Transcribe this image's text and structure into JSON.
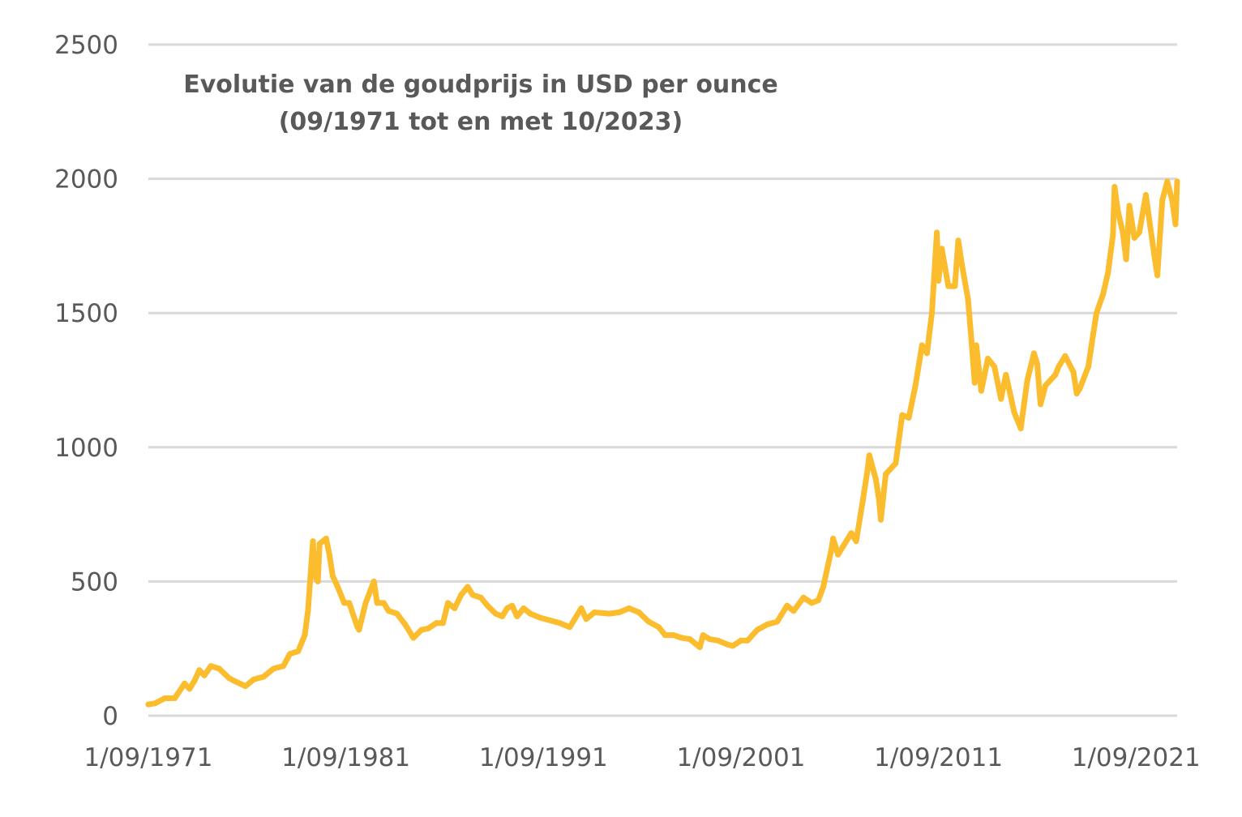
{
  "chart_data": {
    "type": "line",
    "title": "Evolutie van de goudprijs in USD per ounce",
    "subtitle": "(09/1971 tot en met 10/2023)",
    "xlabel": "",
    "ylabel": "",
    "ylim": [
      0,
      2500
    ],
    "xlim": [
      "1971-09",
      "2023-10"
    ],
    "y_ticks": [
      "0",
      "500",
      "1000",
      "1500",
      "2000",
      "2500"
    ],
    "x_ticks": [
      "1/09/1971",
      "1/09/1981",
      "1/09/1991",
      "1/09/2001",
      "1/09/2011",
      "1/09/2021"
    ],
    "grid": true,
    "legend": "none",
    "line_color": "#FBBC2E",
    "grid_color": "#D9D9D9",
    "series": [
      {
        "x": [
          "1971-09",
          "1972-01",
          "1972-07",
          "1973-01",
          "1973-07",
          "1973-10",
          "1974-01",
          "1974-04",
          "1974-07",
          "1974-11",
          "1975-04",
          "1975-10",
          "1976-01",
          "1976-08",
          "1977-01",
          "1977-07",
          "1978-01",
          "1978-07",
          "1978-11",
          "1979-04",
          "1979-08",
          "1979-10",
          "1980-01",
          "1980-02",
          "1980-04",
          "1980-05",
          "1980-09",
          "1980-11",
          "1981-01",
          "1981-04",
          "1981-08",
          "1981-11",
          "1982-04",
          "1982-05",
          "1982-09",
          "1983-02",
          "1983-04",
          "1983-08",
          "1983-11",
          "1984-04",
          "1984-09",
          "1985-02",
          "1985-07",
          "1985-11",
          "1986-04",
          "1986-08",
          "1986-11",
          "1987-03",
          "1987-07",
          "1987-11",
          "1988-02",
          "1988-07",
          "1988-11",
          "1989-04",
          "1989-08",
          "1989-11",
          "1990-02",
          "1990-05",
          "1990-09",
          "1991-01",
          "1991-07",
          "1992-01",
          "1992-07",
          "1993-01",
          "1993-04",
          "1993-08",
          "1993-11",
          "1994-04",
          "1995-01",
          "1995-07",
          "1996-01",
          "1996-07",
          "1997-01",
          "1997-07",
          "1997-11",
          "1998-04",
          "1998-09",
          "1999-02",
          "1999-08",
          "1999-10",
          "2000-02",
          "2000-07",
          "2001-01",
          "2001-04",
          "2001-09",
          "2002-01",
          "2002-07",
          "2003-01",
          "2003-07",
          "2004-01",
          "2004-05",
          "2004-11",
          "2005-04",
          "2005-08",
          "2005-11",
          "2006-04",
          "2006-05",
          "2006-08",
          "2006-11",
          "2007-04",
          "2007-07",
          "2007-11",
          "2008-02",
          "2008-03",
          "2008-07",
          "2008-09",
          "2008-10",
          "2009-01",
          "2009-07",
          "2009-11",
          "2010-03",
          "2010-07",
          "2010-11",
          "2011-02",
          "2011-05",
          "2011-08",
          "2011-09",
          "2011-11",
          "2012-03",
          "2012-07",
          "2012-09",
          "2012-11",
          "2013-03",
          "2013-05",
          "2013-07",
          "2013-08",
          "2013-11",
          "2014-03",
          "2014-07",
          "2014-11",
          "2015-02",
          "2015-07",
          "2015-11",
          "2016-03",
          "2016-07",
          "2016-09",
          "2016-11",
          "2017-02",
          "2017-08",
          "2017-10",
          "2018-02",
          "2018-07",
          "2018-09",
          "2018-11",
          "2019-04",
          "2019-07",
          "2019-09",
          "2020-01",
          "2020-04",
          "2020-07",
          "2020-08",
          "2020-10",
          "2021-01",
          "2021-03",
          "2021-05",
          "2021-08",
          "2021-11",
          "2022-03",
          "2022-05",
          "2022-08",
          "2022-10",
          "2023-01",
          "2023-04",
          "2023-07",
          "2023-09",
          "2023-10"
        ],
        "values": [
          42,
          46,
          65,
          65,
          120,
          100,
          130,
          170,
          150,
          185,
          175,
          140,
          130,
          110,
          135,
          145,
          175,
          185,
          230,
          240,
          300,
          390,
          650,
          520,
          500,
          640,
          660,
          600,
          520,
          480,
          420,
          420,
          330,
          320,
          420,
          500,
          420,
          420,
          390,
          380,
          340,
          290,
          320,
          325,
          345,
          345,
          420,
          400,
          450,
          480,
          450,
          440,
          410,
          380,
          370,
          400,
          410,
          370,
          400,
          380,
          365,
          355,
          345,
          330,
          360,
          400,
          360,
          385,
          380,
          385,
          400,
          385,
          350,
          330,
          300,
          300,
          290,
          285,
          255,
          300,
          285,
          280,
          265,
          260,
          280,
          280,
          320,
          340,
          350,
          410,
          390,
          440,
          420,
          430,
          480,
          620,
          660,
          600,
          630,
          680,
          650,
          800,
          920,
          970,
          880,
          800,
          730,
          900,
          940,
          1120,
          1110,
          1230,
          1380,
          1350,
          1500,
          1800,
          1620,
          1740,
          1600,
          1600,
          1770,
          1690,
          1550,
          1400,
          1240,
          1380,
          1210,
          1330,
          1300,
          1180,
          1270,
          1130,
          1070,
          1250,
          1350,
          1310,
          1160,
          1230,
          1270,
          1300,
          1340,
          1280,
          1200,
          1220,
          1300,
          1420,
          1500,
          1570,
          1650,
          1790,
          1970,
          1880,
          1800,
          1700,
          1900,
          1780,
          1800,
          1940,
          1850,
          1720,
          1640,
          1920,
          1990,
          1920,
          1830,
          1990
        ]
      }
    ]
  }
}
